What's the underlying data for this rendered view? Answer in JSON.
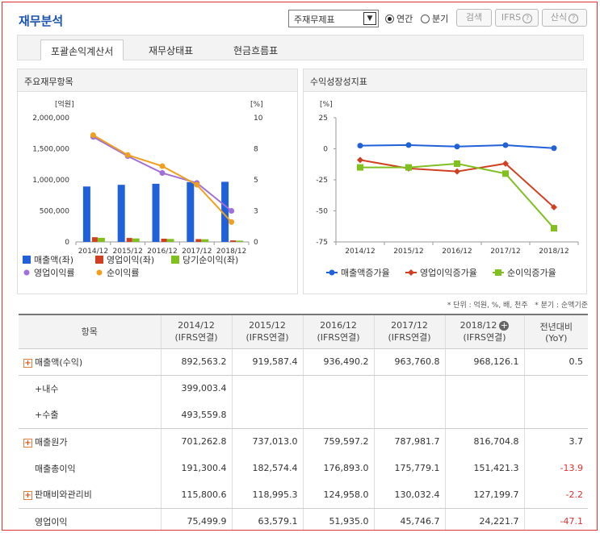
{
  "header": {
    "title": "재무분석",
    "select_value": "주재무제표",
    "radio_annual": "연간",
    "radio_quarter": "분기",
    "search_btn": "검색",
    "ifrs_btn": "IFRS",
    "formula_btn": "산식",
    "help_glyph": "?"
  },
  "tabs": [
    "포괄손익계산서",
    "재무상태표",
    "현금흐름표"
  ],
  "panels": {
    "left_title": "주요재무항목",
    "right_title": "수익성장성지표"
  },
  "chart_data": [
    {
      "type": "bar",
      "categories": [
        "2014/12",
        "2015/12",
        "2016/12",
        "2017/12",
        "2018/12"
      ],
      "ylabel_left": "[억원]",
      "ylabel_right": "[%]",
      "ylim_left": [
        0,
        2000000
      ],
      "left_ticks": [
        "2,000,000",
        "1,500,000",
        "1,000,000",
        "500,000",
        "0"
      ],
      "ylim_right": [
        0,
        10
      ],
      "right_ticks": [
        "10",
        "8",
        "5",
        "3",
        "0"
      ],
      "series": [
        {
          "name": "매출액(좌)",
          "kind": "bar",
          "color": "#2060d8",
          "values": [
            892563.2,
            919587.4,
            936490.2,
            963760.8,
            968126.1
          ]
        },
        {
          "name": "영업이익(좌)",
          "kind": "bar",
          "color": "#d04020",
          "values": [
            75499.9,
            63579.1,
            51935.0,
            45746.7,
            24221.7
          ]
        },
        {
          "name": "당기순이익(좌)",
          "kind": "bar",
          "color": "#80c020",
          "values": [
            66000,
            56000,
            48000,
            43000,
            20000
          ]
        },
        {
          "name": "영업이익률",
          "kind": "line",
          "color": "#a070d8",
          "values": [
            8.46,
            6.91,
            5.55,
            4.75,
            2.5
          ]
        },
        {
          "name": "순이익률",
          "kind": "line",
          "color": "#f0a020",
          "values": [
            8.6,
            7.0,
            6.1,
            4.6,
            1.6
          ]
        }
      ],
      "legend": [
        "매출액(좌)",
        "영업이익(좌)",
        "당기순이익(좌)",
        "영업이익률",
        "순이익률"
      ]
    },
    {
      "type": "line",
      "categories": [
        "2014/12",
        "2015/12",
        "2016/12",
        "2017/12",
        "2018/12"
      ],
      "ylabel": "[%]",
      "ylim": [
        -75,
        25
      ],
      "ticks": [
        "25",
        "0",
        "-25",
        "-50",
        "-75"
      ],
      "series": [
        {
          "name": "매출액증가율",
          "color": "#2060d8",
          "values": [
            2.5,
            3.0,
            1.8,
            2.9,
            0.5
          ]
        },
        {
          "name": "영업이익증가율",
          "color": "#d04020",
          "values": [
            -9,
            -15.8,
            -18.3,
            -11.9,
            -47.1
          ]
        },
        {
          "name": "순이익증가율",
          "color": "#80c020",
          "values": [
            -15,
            -15,
            -12,
            -20,
            -64
          ]
        }
      ]
    }
  ],
  "notes": {
    "unit": "* 단위 : 억원, %, 배, 천주",
    "quarter": "* 분기 : 순액기준"
  },
  "table": {
    "head": [
      "항목",
      "2014/12",
      "2015/12",
      "2016/12",
      "2017/12",
      "2018/12",
      "전년대비"
    ],
    "head_sub": [
      "",
      "(IFRS연결)",
      "(IFRS연결)",
      "(IFRS연결)",
      "(IFRS연결)",
      "(IFRS연결)",
      "(YoY)"
    ],
    "rows": [
      {
        "label": "매출액(수익)",
        "plus": true,
        "vals": [
          "892,563.2",
          "919,587.4",
          "936,490.2",
          "963,760.8",
          "968,126.1",
          "0.5"
        ]
      },
      {
        "label": "+내수",
        "sub": true,
        "vals": [
          "399,003.4",
          "",
          "",
          "",
          "",
          ""
        ]
      },
      {
        "label": "+수출",
        "sub": true,
        "vals": [
          "493,559.8",
          "",
          "",
          "",
          "",
          ""
        ]
      },
      {
        "label": "매출원가",
        "plus": true,
        "vals": [
          "701,262.8",
          "737,013.0",
          "759,597.2",
          "787,981.7",
          "816,704.8",
          "3.7"
        ]
      },
      {
        "label": "매출총이익",
        "vals": [
          "191,300.4",
          "182,574.4",
          "176,893.0",
          "175,779.1",
          "151,421.3",
          "-13.9"
        ]
      },
      {
        "label": "판매비와관리비",
        "plus": true,
        "vals": [
          "115,800.6",
          "118,995.3",
          "124,958.0",
          "130,032.4",
          "127,199.7",
          "-2.2"
        ]
      },
      {
        "label": "영업이익",
        "vals": [
          "75,499.9",
          "63,579.1",
          "51,935.0",
          "45,746.7",
          "24,221.7",
          "-47.1"
        ]
      }
    ]
  }
}
